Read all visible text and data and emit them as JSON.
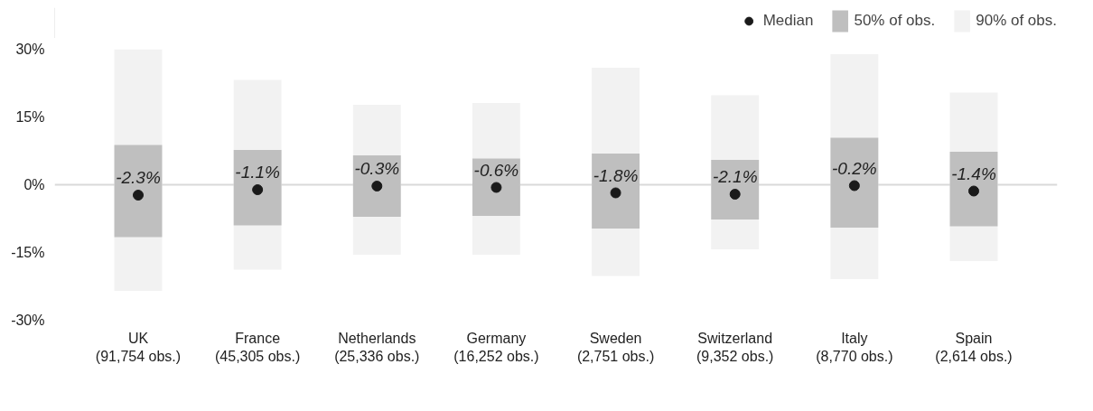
{
  "chart_data": {
    "type": "bar",
    "categories": [
      "UK\n(91,754 obs.)",
      "France\n(45,305 obs.)",
      "Netherlands\n(25,336 obs.)",
      "Germany\n(16,252 obs.)",
      "Sweden\n(2,751 obs.)",
      "Switzerland\n(9,352 obs.)",
      "Italy\n(8,770 obs.)",
      "Spain\n(2,614 obs.)"
    ],
    "series": [
      {
        "name": "90% of obs.",
        "color": "#f2f2f2",
        "base": [
          -23.5,
          -18.8,
          -15.5,
          -15.5,
          -20.2,
          -14.3,
          -20.9,
          -16.9
        ],
        "values": [
          53.5,
          42.0,
          33.2,
          33.6,
          46.1,
          34.1,
          49.8,
          37.3
        ]
      },
      {
        "name": "50% of obs.",
        "color": "#bfbfbf",
        "base": [
          -11.6,
          -9.0,
          -7.1,
          -6.9,
          -9.7,
          -7.7,
          -9.5,
          -9.2
        ],
        "values": [
          20.4,
          16.7,
          13.6,
          12.7,
          16.6,
          13.2,
          19.9,
          16.5
        ]
      },
      {
        "name": "Median",
        "type": "scatter",
        "color": "#1a1a1a",
        "marker": "circle",
        "values": [
          -2.3,
          -1.1,
          -0.3,
          -0.6,
          -1.8,
          -2.1,
          -0.2,
          -1.4
        ],
        "value_labels": [
          "-2.3%",
          "-1.1%",
          "-0.3%",
          "-0.6%",
          "-1.8%",
          "-2.1%",
          "-0.2%",
          "-1.4%"
        ]
      }
    ],
    "ylim": [
      -30,
      30
    ],
    "yticks": [
      {
        "value": -30,
        "label": "-30%"
      },
      {
        "value": -15,
        "label": "-15%"
      },
      {
        "value": 0,
        "label": "0%"
      },
      {
        "value": 15,
        "label": "15%"
      },
      {
        "value": 30,
        "label": "30%"
      }
    ],
    "ref_lines": [
      {
        "axis": "y",
        "value": 0,
        "color": "#d9d9d9"
      }
    ],
    "grid": false,
    "legend": "top right"
  }
}
